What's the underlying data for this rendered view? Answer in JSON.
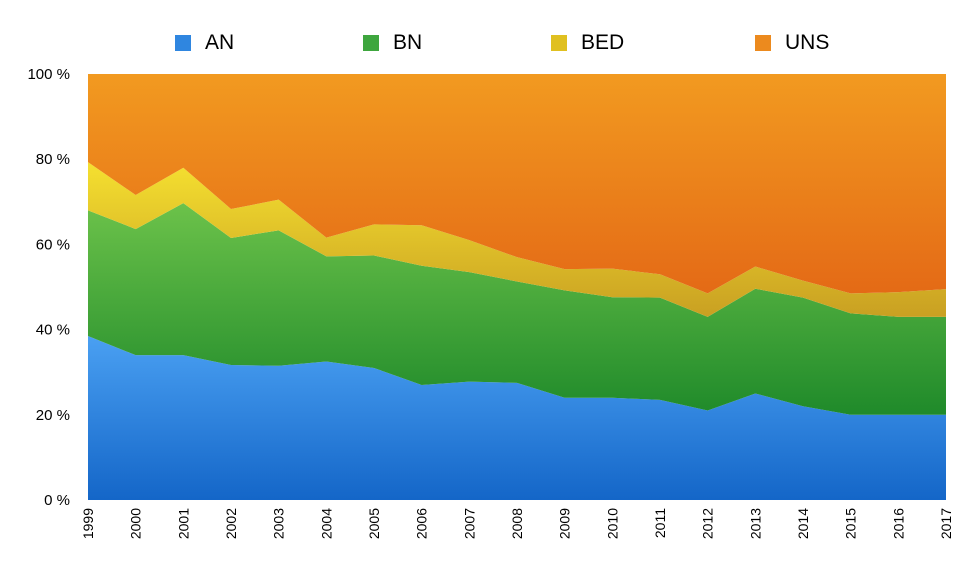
{
  "chart_data": {
    "type": "area",
    "stacked": true,
    "normalized": true,
    "title": "",
    "xlabel": "",
    "ylabel": "",
    "ylim": [
      0,
      100
    ],
    "y_ticks": [
      "0 %",
      "20 %",
      "40 %",
      "60 %",
      "80 %",
      "100 %"
    ],
    "y_tick_values": [
      0,
      20,
      40,
      60,
      80,
      100
    ],
    "legend_position": "top",
    "grid": false,
    "x": [
      "1999",
      "2000",
      "2001",
      "2002",
      "2003",
      "2004",
      "2005",
      "2006",
      "2007",
      "2008",
      "2009",
      "2010",
      "2011",
      "2012",
      "2013",
      "2014",
      "2015",
      "2016",
      "2017"
    ],
    "series": [
      {
        "name": "AN",
        "color": "#2f86e0",
        "values": [
          38.5,
          34,
          34,
          31.7,
          31.5,
          32.5,
          31,
          27,
          27.8,
          27.5,
          24,
          24,
          23.5,
          21,
          25,
          22,
          20,
          20,
          20
        ]
      },
      {
        "name": "BN",
        "color": "#3ea63e",
        "values": [
          29.5,
          29.6,
          35.7,
          29.8,
          31.8,
          24.7,
          26.4,
          28,
          25.7,
          23.8,
          25.2,
          23.6,
          24,
          22,
          24.6,
          25.5,
          23.8,
          23,
          23
        ]
      },
      {
        "name": "BED",
        "color": "#e0c020",
        "values": [
          11.3,
          8,
          8.3,
          6.8,
          7.2,
          4.4,
          7.3,
          9.5,
          7.5,
          5.7,
          5,
          6.7,
          5.5,
          5.5,
          5.2,
          4,
          4.7,
          5.8,
          6.5
        ]
      },
      {
        "name": "UNS",
        "color": "#ec8a1e",
        "values": [
          20.7,
          28.4,
          22,
          31.7,
          29.5,
          38.4,
          35.3,
          35.5,
          39,
          43,
          45.8,
          45.7,
          47,
          51.5,
          45.2,
          48.5,
          51.5,
          51.2,
          50.5
        ]
      }
    ]
  }
}
